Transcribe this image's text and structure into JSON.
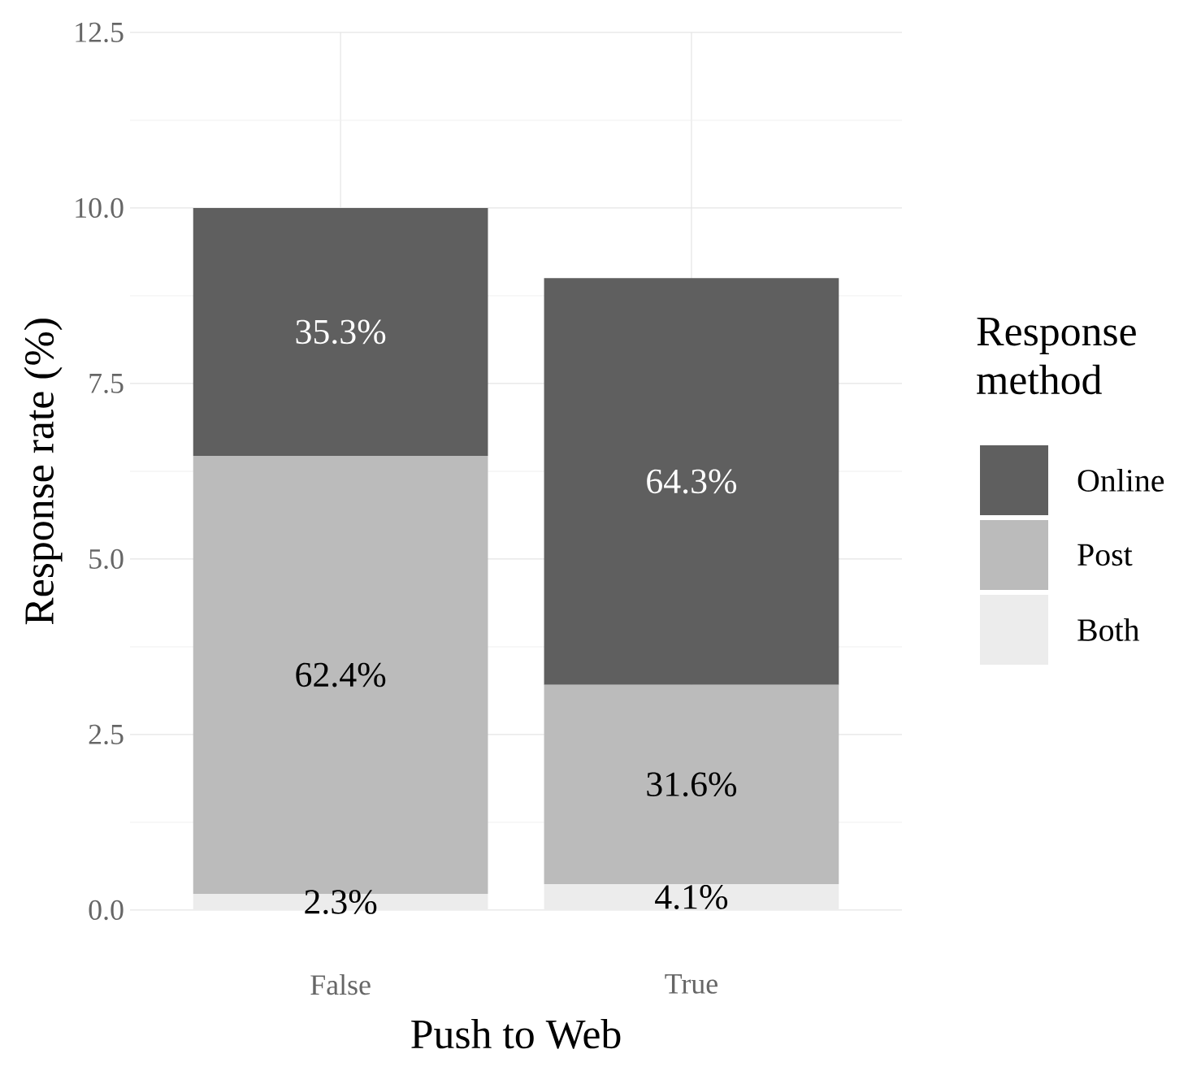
{
  "chart_data": {
    "type": "bar",
    "stacked": true,
    "xlabel": "Push to Web",
    "ylabel": "Response rate (%)",
    "legend_title": "Response method",
    "categories": [
      "False",
      "True"
    ],
    "series": [
      {
        "name": "Both",
        "color": "#ececec",
        "values": [
          0.23,
          0.37
        ]
      },
      {
        "name": "Post",
        "color": "#bbbbbb",
        "values": [
          6.24,
          2.84
        ]
      },
      {
        "name": "Online",
        "color": "#5f5f5f",
        "values": [
          3.53,
          5.79
        ]
      }
    ],
    "annotations": [
      "2.3%",
      "62.4%",
      "35.3%",
      "4.1%",
      "31.6%",
      "64.3%"
    ],
    "ylim": [
      0,
      12.5
    ],
    "yticks": [
      {
        "value": 0,
        "label": "0.0"
      },
      {
        "value": 2.5,
        "label": "2.5"
      },
      {
        "value": 5,
        "label": "5.0"
      },
      {
        "value": 7.5,
        "label": "7.5"
      },
      {
        "value": 10,
        "label": "10.0"
      },
      {
        "value": 12.5,
        "label": "12.5"
      }
    ],
    "grid": true,
    "legend": "right"
  }
}
